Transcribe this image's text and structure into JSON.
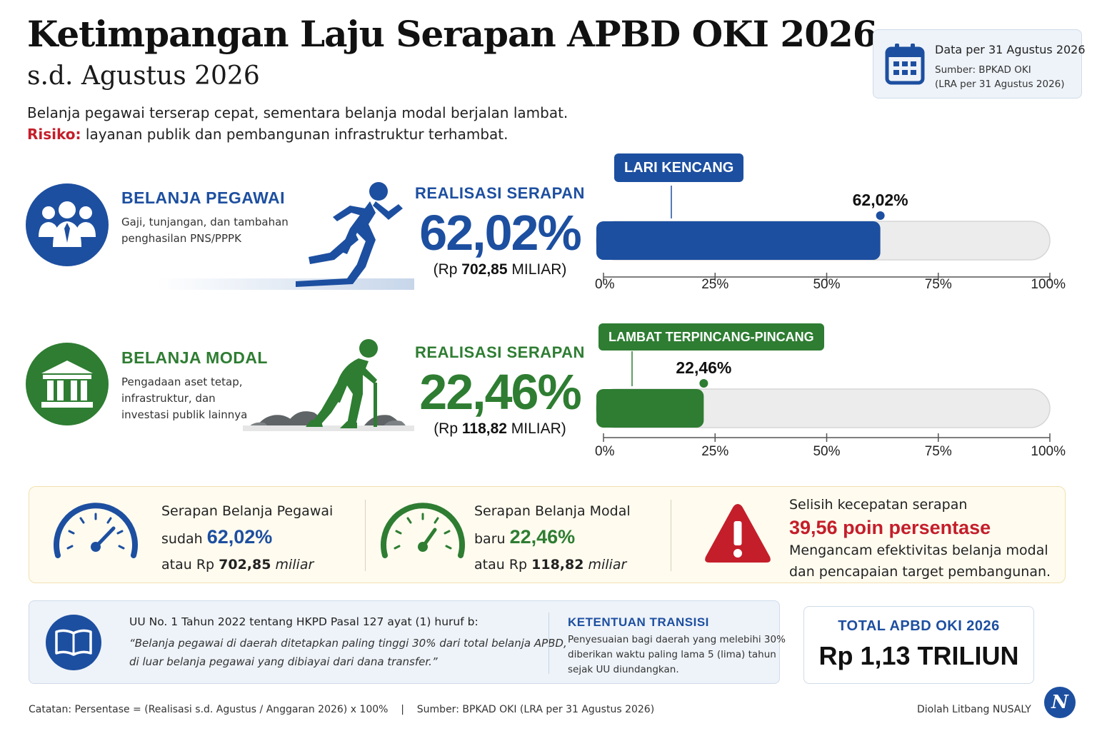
{
  "header": {
    "title": "Ketimpangan Laju Serapan APBD OKI 2026",
    "subtitle": "s.d. Agustus 2026",
    "desc_line1": "Belanja pegawai terserap cepat, sementara belanja modal berjalan lambat.",
    "risk_label": "Risiko:",
    "risk_text": " layanan publik dan pembangunan infrastruktur terhambat."
  },
  "infobox": {
    "date": "Data per 31 Agustus 2026",
    "source_line1": "Sumber: BPKAD OKI",
    "source_line2": "(LRA per 31 Agustus 2026)"
  },
  "colors": {
    "blue": "#1d4fa0",
    "green": "#2e7d32",
    "red": "#c41e2a",
    "track": "#ececec"
  },
  "categories": [
    {
      "title": "BELANJA PEGAWAI",
      "desc": "Gaji, tunjangan, dan tambahan penghasilan PNS/PPPK",
      "real_label": "REALISASI SERAPAN",
      "pct_text": "62,02%",
      "rp_prefix": "(Rp ",
      "rp_amount": "702,85",
      "rp_suffix": " MILIAR)",
      "tag": "LARI KENCANG"
    },
    {
      "title": "BELANJA MODAL",
      "desc": "Pengadaan aset tetap, infrastruktur, dan investasi publik lainnya",
      "real_label": "REALISASI SERAPAN",
      "pct_text": "22,46%",
      "rp_prefix": "(Rp ",
      "rp_amount": "118,82",
      "rp_suffix": " MILIAR)",
      "tag": "LAMBAT TERPINCANG-PINCANG"
    }
  ],
  "chart_data": {
    "type": "bar",
    "orientation": "horizontal",
    "categories": [
      "BELANJA PEGAWAI",
      "BELANJA MODAL"
    ],
    "values": [
      62.02,
      22.46
    ],
    "value_labels": [
      "62,02%",
      "22,46%"
    ],
    "xlim": [
      0,
      100
    ],
    "ticks": [
      0,
      25,
      50,
      75,
      100
    ],
    "tick_labels": [
      "0%",
      "25%",
      "50%",
      "75%",
      "100%"
    ],
    "colors": [
      "#1d4fa0",
      "#2e7d32"
    ]
  },
  "summary": {
    "peg_line1": "Serapan Belanja Pegawai",
    "peg_line2_prefix": "sudah ",
    "peg_value": "62,02%",
    "peg_line3_prefix": "atau Rp ",
    "peg_amount": "702,85",
    "peg_unit": " miliar",
    "mod_line1": "Serapan Belanja Modal",
    "mod_line2_prefix": "baru ",
    "mod_value": "22,46%",
    "mod_line3_prefix": "atau Rp ",
    "mod_amount": "118,82",
    "mod_unit": " miliar",
    "gap_line1": "Selisih kecepatan serapan",
    "gap_value": "39,56 poin persentase",
    "gap_line3": "Mengancam efektivitas belanja modal",
    "gap_line4": "dan pencapaian target pembangunan."
  },
  "law": {
    "heading": "UU No. 1 Tahun 2022 tentang HKPD Pasal 127 ayat (1) huruf b:",
    "quote_line1": "“Belanja pegawai di daerah ditetapkan paling tinggi 30% dari total belanja APBD,",
    "quote_line2": "di luar belanja pegawai yang dibiayai dari dana transfer.”",
    "transition_title": "KETENTUAN TRANSISI",
    "transition_line1": "Penyesuaian bagi daerah yang melebihi 30%",
    "transition_line2": "diberikan waktu paling lama 5 (lima) tahun",
    "transition_line3": "sejak UU diundangkan."
  },
  "total": {
    "label": "TOTAL APBD OKI 2026",
    "value": "Rp 1,13 TRILIUN"
  },
  "footer": {
    "note": "Catatan: Persentase = (Realisasi s.d. Agustus / Anggaran 2026) x 100%    |    Sumber: BPKAD OKI (LRA per 31 Agustus 2026)",
    "credit": "Diolah Litbang NUSALY",
    "logo_letter": "N"
  }
}
